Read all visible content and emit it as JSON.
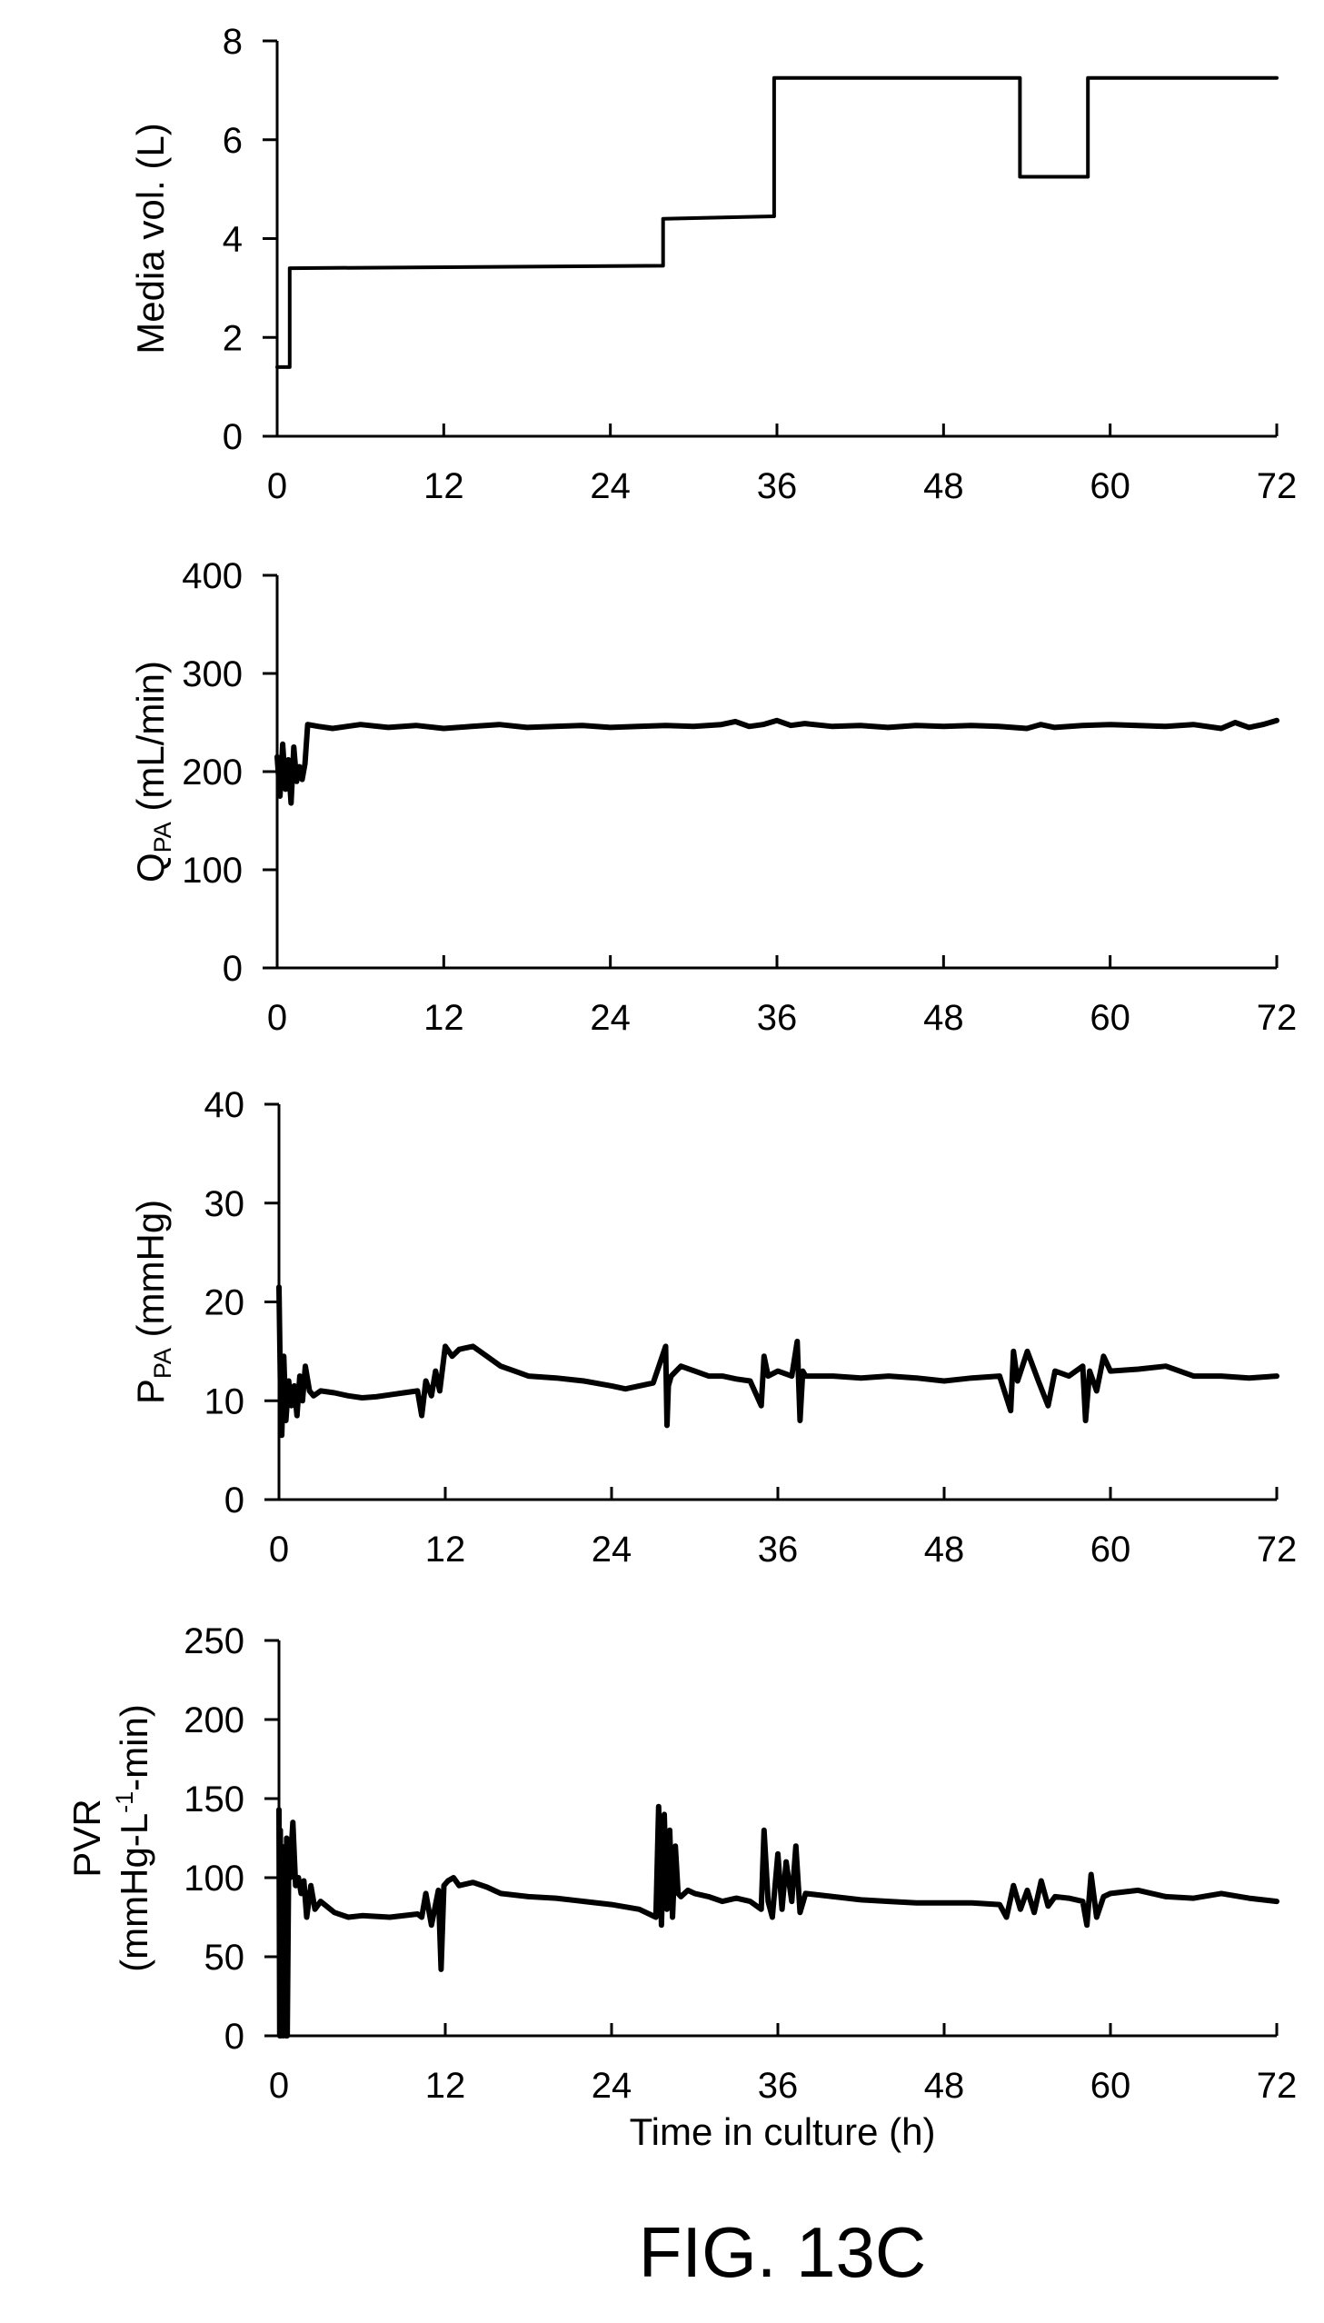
{
  "chart_data": [
    {
      "type": "line",
      "title": "",
      "xlabel": "",
      "ylabel": "Media vol. (L)",
      "xlim": [
        0,
        72
      ],
      "ylim": [
        0,
        8
      ],
      "xticks": [
        "0",
        "12",
        "24",
        "36",
        "48",
        "60",
        "72"
      ],
      "yticks": [
        "0",
        "2",
        "4",
        "6",
        "8"
      ],
      "grid": false,
      "step": true,
      "series": [
        {
          "x": [
            0,
            0.9,
            0.9,
            27.8,
            27.8,
            35.8,
            35.8,
            53.5,
            53.5,
            58.4,
            58.4,
            72
          ],
          "y": [
            1.4,
            1.4,
            3.4,
            3.45,
            4.4,
            4.45,
            7.25,
            7.25,
            5.25,
            5.25,
            7.25,
            7.25
          ]
        }
      ]
    },
    {
      "type": "line",
      "title": "",
      "xlabel": "",
      "ylabel_main": "Q",
      "ylabel_sub": "PA",
      "ylabel_rest": " (mL/min)",
      "xlim": [
        0,
        72
      ],
      "ylim": [
        0,
        400
      ],
      "xticks": [
        "0",
        "12",
        "24",
        "36",
        "48",
        "60",
        "72"
      ],
      "yticks": [
        "0",
        "100",
        "200",
        "300",
        "400"
      ],
      "grid": false,
      "series": [
        {
          "x": [
            0,
            0.2,
            0.4,
            0.6,
            0.8,
            1.0,
            1.2,
            1.4,
            1.6,
            1.8,
            2.0,
            2.2,
            3,
            4,
            6,
            8,
            10,
            12,
            14,
            16,
            18,
            20,
            22,
            24,
            26,
            28,
            30,
            32,
            33,
            34,
            35,
            36,
            37,
            38,
            40,
            42,
            44,
            46,
            48,
            50,
            52,
            54,
            55,
            56,
            58,
            60,
            62,
            64,
            66,
            68,
            69,
            70,
            71,
            72
          ],
          "y": [
            215,
            175,
            228,
            182,
            212,
            168,
            225,
            190,
            205,
            192,
            208,
            248,
            246,
            244,
            248,
            245,
            247,
            244,
            246,
            248,
            245,
            246,
            247,
            245,
            246,
            247,
            246,
            248,
            251,
            246,
            248,
            252,
            247,
            249,
            246,
            247,
            245,
            247,
            246,
            247,
            246,
            244,
            248,
            245,
            247,
            248,
            247,
            246,
            248,
            244,
            250,
            245,
            248,
            252
          ]
        }
      ]
    },
    {
      "type": "line",
      "title": "",
      "xlabel": "",
      "ylabel_main": "P",
      "ylabel_sub": "PA",
      "ylabel_rest": " (mmHg)",
      "xlim": [
        0,
        72
      ],
      "ylim": [
        0,
        40
      ],
      "xticks": [
        "0",
        "12",
        "24",
        "36",
        "48",
        "60",
        "72"
      ],
      "yticks": [
        "0",
        "10",
        "20",
        "30",
        "40"
      ],
      "grid": false,
      "series": [
        {
          "x": [
            0,
            0.1,
            0.2,
            0.35,
            0.5,
            0.7,
            0.9,
            1.1,
            1.3,
            1.5,
            1.7,
            1.9,
            2.2,
            2.5,
            3,
            4,
            5,
            6,
            7,
            8,
            9,
            10,
            10.3,
            10.6,
            11,
            11.3,
            11.6,
            12,
            12.5,
            13,
            14,
            15,
            16,
            17,
            18,
            20,
            22,
            24,
            25,
            26,
            27,
            27.9,
            28.0,
            28.1,
            28.3,
            29,
            30,
            31,
            32,
            33,
            34,
            34.8,
            35.0,
            35.3,
            36,
            37,
            37.4,
            37.6,
            37.8,
            38,
            40,
            42,
            44,
            46,
            48,
            50,
            52,
            52.8,
            53.0,
            53.3,
            54,
            54.8,
            55.5,
            56,
            57,
            58,
            58.2,
            58.5,
            59,
            59.5,
            60,
            62,
            64,
            66,
            68,
            70,
            72
          ],
          "y": [
            21.5,
            12,
            6.5,
            14.5,
            8,
            12,
            9.5,
            11.5,
            8.5,
            12.5,
            10,
            13.5,
            11,
            10.5,
            11,
            10.8,
            10.5,
            10.3,
            10.4,
            10.6,
            10.8,
            11,
            8.5,
            12,
            10.5,
            13,
            11,
            15.5,
            14.5,
            15.2,
            15.5,
            14.5,
            13.5,
            13,
            12.5,
            12.3,
            12,
            11.5,
            11.2,
            11.5,
            11.8,
            15.5,
            7.5,
            11.5,
            12.5,
            13.5,
            13,
            12.5,
            12.5,
            12.2,
            12,
            9.5,
            14.5,
            12.5,
            13,
            12.5,
            16,
            8,
            13,
            12.5,
            12.5,
            12.3,
            12.5,
            12.3,
            12,
            12.3,
            12.5,
            9,
            15,
            12,
            15,
            12,
            9.5,
            13,
            12.5,
            13.5,
            8,
            13,
            11,
            14.5,
            13,
            13.2,
            13.5,
            12.5,
            12.5,
            12.3,
            12.5
          ]
        }
      ]
    },
    {
      "type": "line",
      "title": "",
      "xlabel": "Time in culture (h)",
      "ylabel_line1": "PVR",
      "ylabel_line2_main": "(mmHg-L",
      "ylabel_line2_sup": "-1",
      "ylabel_line2_rest": "-min)",
      "xlim": [
        0,
        72
      ],
      "ylim": [
        0,
        250
      ],
      "xticks": [
        "0",
        "12",
        "24",
        "36",
        "48",
        "60",
        "72"
      ],
      "yticks": [
        "0",
        "50",
        "100",
        "150",
        "200",
        "250"
      ],
      "grid": false,
      "series": [
        {
          "x": [
            0,
            0.05,
            0.1,
            0.15,
            0.2,
            0.3,
            0.4,
            0.5,
            0.55,
            0.6,
            0.7,
            0.8,
            0.9,
            1.0,
            1.2,
            1.4,
            1.6,
            1.8,
            2.0,
            2.3,
            2.6,
            3,
            4,
            5,
            6,
            8,
            10,
            10.3,
            10.6,
            11,
            11.5,
            11.7,
            11.9,
            12.2,
            12.6,
            13,
            14,
            15,
            16,
            18,
            20,
            22,
            24,
            26,
            27.2,
            27.4,
            27.6,
            27.8,
            28.0,
            28.2,
            28.4,
            28.6,
            28.8,
            29,
            29.5,
            30,
            31,
            32,
            33,
            34,
            34.8,
            35.0,
            35.3,
            35.6,
            36,
            36.3,
            36.6,
            37,
            37.3,
            37.6,
            38,
            40,
            42,
            44,
            46,
            48,
            50,
            52,
            52.5,
            53,
            53.5,
            54,
            54.5,
            55,
            55.5,
            56,
            57,
            58,
            58.3,
            58.6,
            59,
            59.5,
            60,
            62,
            64,
            66,
            68,
            70,
            72
          ],
          "y": [
            143,
            0,
            130,
            0,
            120,
            0,
            110,
            0,
            125,
            0,
            110,
            100,
            120,
            135,
            95,
            100,
            90,
            98,
            75,
            95,
            80,
            85,
            78,
            75,
            76,
            75,
            77,
            75,
            90,
            70,
            92,
            42,
            95,
            98,
            100,
            95,
            97,
            94,
            90,
            88,
            87,
            85,
            83,
            80,
            75,
            145,
            70,
            140,
            80,
            130,
            75,
            120,
            90,
            88,
            92,
            90,
            88,
            85,
            87,
            85,
            80,
            130,
            85,
            75,
            115,
            80,
            110,
            85,
            120,
            78,
            90,
            88,
            86,
            85,
            84,
            84,
            84,
            83,
            75,
            95,
            80,
            92,
            78,
            98,
            82,
            88,
            87,
            85,
            70,
            102,
            75,
            88,
            90,
            92,
            88,
            87,
            90,
            87,
            85
          ]
        }
      ]
    }
  ],
  "figure_caption": "FIG. 13C"
}
